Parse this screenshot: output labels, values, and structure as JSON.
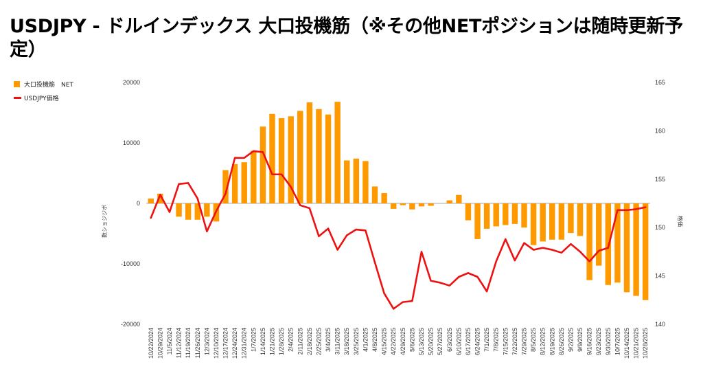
{
  "title": "USDJPY - ドルインデックス 大口投機筋（※その他NETポジションは随時更新予定）",
  "legend": {
    "bar_label": "大口投機筋　NET",
    "line_label": "USDJPY価格"
  },
  "colors": {
    "bar": "#ff9900",
    "line": "#ee1111",
    "axis": "#333333",
    "zero_line": "#888888"
  },
  "chart_data": {
    "type": "bar+line",
    "title": "USDJPY - ドルインデックス 大口投機筋（※その他NETポジションは随時更新予定）",
    "ylabel_left": "数ショジジボ",
    "ylabel_right": "格価",
    "ylim_left": [
      -20000,
      20000
    ],
    "yticks_left": [
      -20000,
      -10000,
      0,
      10000,
      20000
    ],
    "ylim_right": [
      140,
      165
    ],
    "yticks_right": [
      140,
      145,
      150,
      155,
      160,
      165
    ],
    "x_tick_labels": [
      "10/22/2024",
      "10/29/2024",
      "11/5/2024",
      "11/12/2024",
      "11/19/2024",
      "11/26/2024",
      "12/3/2024",
      "12/10/2024",
      "12/17/2024",
      "12/24/2024",
      "12/31/2024",
      "1/7/2025",
      "1/14/2025",
      "1/21/2025",
      "1/28/2025",
      "2/4/2025",
      "2/11/2025",
      "2/18/2025",
      "2/25/2025",
      "3/4/2025",
      "3/11/2025",
      "3/18/2025",
      "3/25/2025",
      "4/1/2025",
      "4/8/2025",
      "4/15/2025",
      "4/22/2025",
      "4/29/2025",
      "5/6/2025",
      "5/13/2025",
      "5/20/2025",
      "5/27/2025",
      "6/3/2025",
      "6/10/2025",
      "6/17/2025",
      "6/24/2025",
      "7/1/2025",
      "7/8/2025",
      "7/15/2025",
      "7/22/2025",
      "7/29/2025",
      "8/5/2025",
      "8/12/2025",
      "8/19/2025",
      "8/26/2025",
      "9/2/2025",
      "9/9/2025",
      "9/16/2025",
      "9/23/2025",
      "9/30/2025",
      "10/7/2025",
      "10/14/2025",
      "10/21/2025",
      "10/28/2025"
    ],
    "series": [
      {
        "name": "大口投機筋　NET",
        "kind": "bar",
        "axis": "left",
        "values": [
          800,
          1600,
          0,
          -2200,
          -2700,
          -2700,
          -2200,
          -3000,
          5500,
          6500,
          6800,
          8700,
          12700,
          14800,
          14100,
          14400,
          15300,
          16700,
          15600,
          14700,
          16800,
          7100,
          7400,
          7000,
          2800,
          1700,
          -900,
          -300,
          -1000,
          -500,
          -400,
          0,
          500,
          1400,
          -2800,
          -5900,
          -4200,
          -3800,
          -3600,
          -3400,
          -4000,
          -6900,
          -6300,
          -6000,
          -6000,
          -4900,
          -5400,
          -12700,
          -10300,
          -13500,
          -13100,
          -14700,
          -15300,
          -16000
        ]
      },
      {
        "name": "USDJPY価格",
        "kind": "line",
        "axis": "right",
        "values": [
          151.0,
          153.4,
          151.6,
          154.5,
          154.6,
          153.0,
          149.6,
          151.7,
          153.5,
          157.2,
          157.2,
          157.9,
          157.8,
          155.5,
          155.5,
          154.2,
          152.3,
          152.0,
          149.1,
          149.9,
          147.7,
          149.2,
          149.8,
          149.7,
          146.4,
          143.2,
          141.6,
          142.3,
          142.4,
          147.5,
          144.5,
          144.3,
          144.0,
          144.9,
          145.3,
          144.9,
          143.4,
          146.5,
          148.8,
          146.6,
          148.4,
          147.7,
          147.9,
          147.7,
          147.4,
          148.3,
          147.5,
          146.5,
          147.6,
          147.9,
          151.8,
          151.8,
          151.9,
          152.1
        ]
      }
    ]
  }
}
